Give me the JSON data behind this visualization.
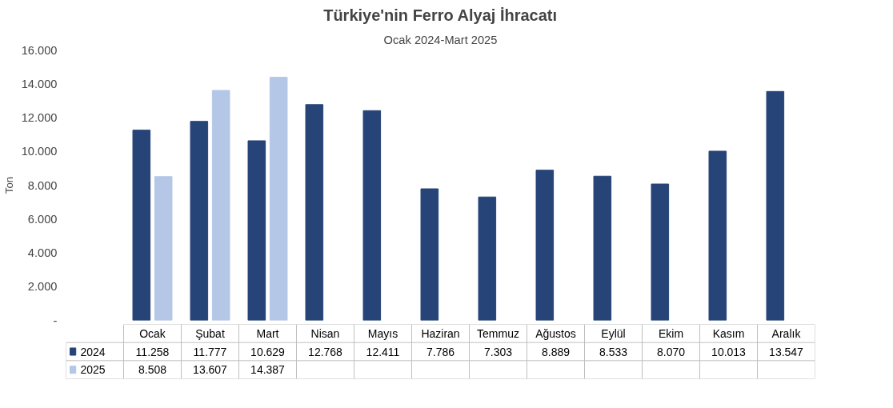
{
  "chart_data": {
    "type": "bar",
    "title": "Türkiye'nin Ferro Alyaj İhracatı",
    "subtitle": "Ocak 2024-Mart 2025",
    "ylabel": "Ton",
    "categories": [
      "Ocak",
      "Şubat",
      "Mart",
      "Nisan",
      "Mayıs",
      "Haziran",
      "Temmuz",
      "Ağustos",
      "Eylül",
      "Ekim",
      "Kasım",
      "Aralık"
    ],
    "series": [
      {
        "name": "2024",
        "color": "#264478",
        "values": [
          11258,
          11777,
          10629,
          12768,
          12411,
          7786,
          7303,
          8889,
          8533,
          8070,
          10013,
          13547
        ],
        "value_labels": [
          "11.258",
          "11.777",
          "10.629",
          "12.768",
          "12.411",
          "7.786",
          "7.303",
          "8.889",
          "8.533",
          "8.070",
          "10.013",
          "13.547"
        ]
      },
      {
        "name": "2025",
        "color": "#b4c7e7",
        "values": [
          8508,
          13607,
          14387,
          null,
          null,
          null,
          null,
          null,
          null,
          null,
          null,
          null
        ],
        "value_labels": [
          "8.508",
          "13.607",
          "14.387",
          null,
          null,
          null,
          null,
          null,
          null,
          null,
          null,
          null
        ]
      }
    ],
    "ylim": [
      0,
      16000
    ],
    "yticks": [
      {
        "value": 0,
        "label": "-"
      },
      {
        "value": 2000,
        "label": "2.000"
      },
      {
        "value": 4000,
        "label": "4.000"
      },
      {
        "value": 6000,
        "label": "6.000"
      },
      {
        "value": 8000,
        "label": "8.000"
      },
      {
        "value": 10000,
        "label": "10.000"
      },
      {
        "value": 12000,
        "label": "12.000"
      },
      {
        "value": 14000,
        "label": "14.000"
      },
      {
        "value": 16000,
        "label": "16.000"
      }
    ],
    "grid": false,
    "legend": "bottom"
  }
}
